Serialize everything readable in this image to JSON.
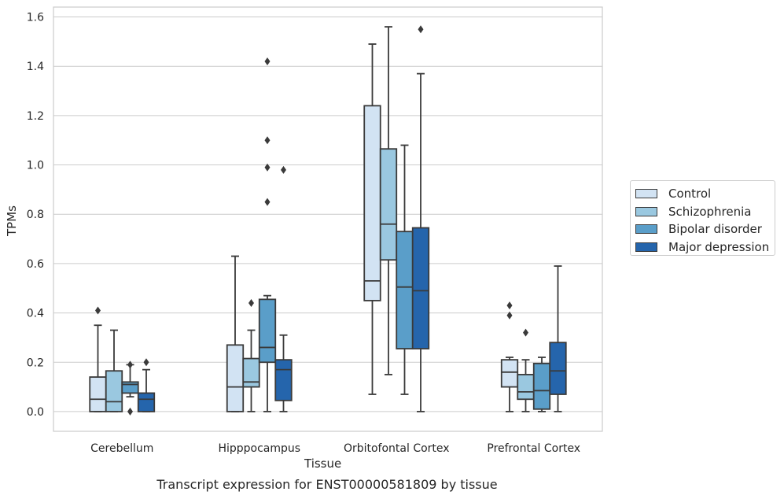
{
  "chart_data": {
    "type": "box",
    "caption": "Transcript expression for ENST00000581809 by tissue",
    "xlabel": "Tissue",
    "ylabel": "TPMs",
    "ylim": [
      -0.08,
      1.64
    ],
    "yticks": [
      0.0,
      0.2,
      0.4,
      0.6,
      0.8,
      1.0,
      1.2,
      1.4,
      1.6
    ],
    "ytick_labels": [
      "0.0",
      "0.2",
      "0.4",
      "0.6",
      "0.8",
      "1.0",
      "1.2",
      "1.4",
      "1.6"
    ],
    "categories": [
      "Cerebellum",
      "Hipppocampus",
      "Orbitofontal Cortex",
      "Prefrontal Cortex"
    ],
    "grid": "horizontal",
    "legend_position": "right",
    "series": [
      {
        "name": "Control",
        "color": "#d2e3f3",
        "boxes": [
          {
            "low": 0.0,
            "q1": 0.0,
            "median": 0.05,
            "q3": 0.14,
            "high": 0.35,
            "outliers": [
              0.41
            ]
          },
          {
            "low": 0.0,
            "q1": 0.0,
            "median": 0.1,
            "q3": 0.27,
            "high": 0.63,
            "outliers": []
          },
          {
            "low": 0.07,
            "q1": 0.45,
            "median": 0.53,
            "q3": 1.24,
            "high": 1.49,
            "outliers": []
          },
          {
            "low": 0.0,
            "q1": 0.1,
            "median": 0.16,
            "q3": 0.21,
            "high": 0.22,
            "outliers": [
              0.39,
              0.43
            ]
          }
        ]
      },
      {
        "name": "Schizophrenia",
        "color": "#9ac8e0",
        "boxes": [
          {
            "low": 0.0,
            "q1": 0.0,
            "median": 0.04,
            "q3": 0.165,
            "high": 0.33,
            "outliers": []
          },
          {
            "low": 0.0,
            "q1": 0.1,
            "median": 0.12,
            "q3": 0.215,
            "high": 0.33,
            "outliers": [
              0.44
            ]
          },
          {
            "low": 0.15,
            "q1": 0.615,
            "median": 0.76,
            "q3": 1.065,
            "high": 1.56,
            "outliers": []
          },
          {
            "low": 0.0,
            "q1": 0.05,
            "median": 0.08,
            "q3": 0.15,
            "high": 0.21,
            "outliers": [
              0.32
            ]
          }
        ]
      },
      {
        "name": "Bipolar disorder",
        "color": "#5a9ec9",
        "boxes": [
          {
            "low": 0.06,
            "q1": 0.075,
            "median": 0.11,
            "q3": 0.12,
            "high": 0.19,
            "outliers": [
              0.19,
              0.0
            ]
          },
          {
            "low": 0.0,
            "q1": 0.2,
            "median": 0.26,
            "q3": 0.455,
            "high": 0.47,
            "outliers": [
              0.85,
              0.99,
              1.1,
              1.42
            ]
          },
          {
            "low": 0.07,
            "q1": 0.255,
            "median": 0.505,
            "q3": 0.73,
            "high": 1.08,
            "outliers": []
          },
          {
            "low": 0.0,
            "q1": 0.01,
            "median": 0.085,
            "q3": 0.195,
            "high": 0.22,
            "outliers": []
          }
        ]
      },
      {
        "name": "Major depression",
        "color": "#2565ac",
        "boxes": [
          {
            "low": 0.0,
            "q1": 0.0,
            "median": 0.05,
            "q3": 0.075,
            "high": 0.17,
            "outliers": [
              0.2
            ]
          },
          {
            "low": 0.0,
            "q1": 0.045,
            "median": 0.17,
            "q3": 0.21,
            "high": 0.31,
            "outliers": [
              0.98
            ]
          },
          {
            "low": 0.0,
            "q1": 0.255,
            "median": 0.49,
            "q3": 0.745,
            "high": 1.37,
            "outliers": [
              1.55
            ]
          },
          {
            "low": 0.0,
            "q1": 0.07,
            "median": 0.165,
            "q3": 0.28,
            "high": 0.59,
            "outliers": []
          }
        ]
      }
    ]
  }
}
